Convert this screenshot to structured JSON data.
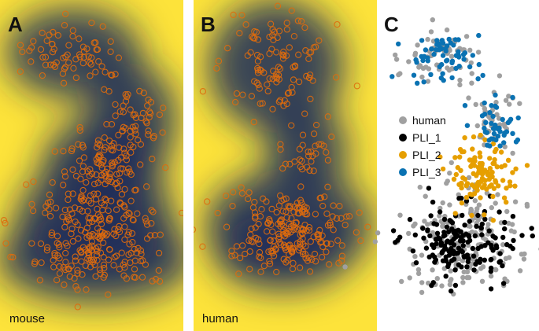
{
  "chart_data": [
    {
      "type": "scatter",
      "panel_label": "A",
      "corner_label": "mouse",
      "background": "density-heatmap",
      "density_colors": {
        "high": "#1b2a5a",
        "low": "#fde33a"
      },
      "point_color": "#e06c0c",
      "marker": "open-circle",
      "clusters": [
        {
          "cx": 0.4,
          "cy": 0.16,
          "sx": 0.14,
          "sy": 0.045,
          "n": 70
        },
        {
          "cx": 0.72,
          "cy": 0.36,
          "sx": 0.08,
          "sy": 0.06,
          "n": 55
        },
        {
          "cx": 0.56,
          "cy": 0.5,
          "sx": 0.12,
          "sy": 0.05,
          "n": 80
        },
        {
          "cx": 0.52,
          "cy": 0.66,
          "sx": 0.17,
          "sy": 0.06,
          "n": 150
        },
        {
          "cx": 0.52,
          "cy": 0.78,
          "sx": 0.22,
          "sy": 0.045,
          "n": 110
        }
      ]
    },
    {
      "type": "scatter",
      "panel_label": "B",
      "corner_label": "human",
      "background": "density-heatmap",
      "density_colors": {
        "high": "#1b2a5a",
        "low": "#fde33a"
      },
      "point_color": "#e06c0c",
      "marker": "open-circle",
      "clusters": [
        {
          "cx": 0.45,
          "cy": 0.2,
          "sx": 0.14,
          "sy": 0.075,
          "n": 110
        },
        {
          "cx": 0.62,
          "cy": 0.45,
          "sx": 0.07,
          "sy": 0.04,
          "n": 30
        },
        {
          "cx": 0.52,
          "cy": 0.68,
          "sx": 0.18,
          "sy": 0.06,
          "n": 160
        },
        {
          "cx": 0.48,
          "cy": 0.76,
          "sx": 0.14,
          "sy": 0.035,
          "n": 60
        }
      ]
    },
    {
      "type": "scatter",
      "panel_label": "C",
      "legend": [
        {
          "label": "human",
          "color": "#a0a0a0"
        },
        {
          "label": "PLI_1",
          "color": "#000000"
        },
        {
          "label": "PLI_2",
          "color": "#e69f00"
        },
        {
          "label": "PLI_3",
          "color": "#0a72b2"
        }
      ],
      "groups": [
        {
          "name": "human",
          "color": "#a0a0a0",
          "clusters": [
            {
              "cx": 0.4,
              "cy": 0.16,
              "sx": 0.13,
              "sy": 0.045,
              "n": 60
            },
            {
              "cx": 0.72,
              "cy": 0.36,
              "sx": 0.07,
              "sy": 0.05,
              "n": 40
            },
            {
              "cx": 0.54,
              "cy": 0.68,
              "sx": 0.18,
              "sy": 0.06,
              "n": 120
            },
            {
              "cx": 0.55,
              "cy": 0.8,
              "sx": 0.2,
              "sy": 0.04,
              "n": 70
            }
          ]
        },
        {
          "name": "PLI_1",
          "color": "#000000",
          "clusters": [
            {
              "cx": 0.52,
              "cy": 0.73,
              "sx": 0.16,
              "sy": 0.055,
              "n": 170
            }
          ]
        },
        {
          "name": "PLI_2",
          "color": "#e69f00",
          "clusters": [
            {
              "cx": 0.63,
              "cy": 0.52,
              "sx": 0.1,
              "sy": 0.05,
              "n": 110
            }
          ]
        },
        {
          "name": "PLI_3",
          "color": "#0a72b2",
          "clusters": [
            {
              "cx": 0.42,
              "cy": 0.18,
              "sx": 0.11,
              "sy": 0.04,
              "n": 60
            },
            {
              "cx": 0.72,
              "cy": 0.38,
              "sx": 0.07,
              "sy": 0.04,
              "n": 45
            }
          ]
        }
      ]
    }
  ]
}
